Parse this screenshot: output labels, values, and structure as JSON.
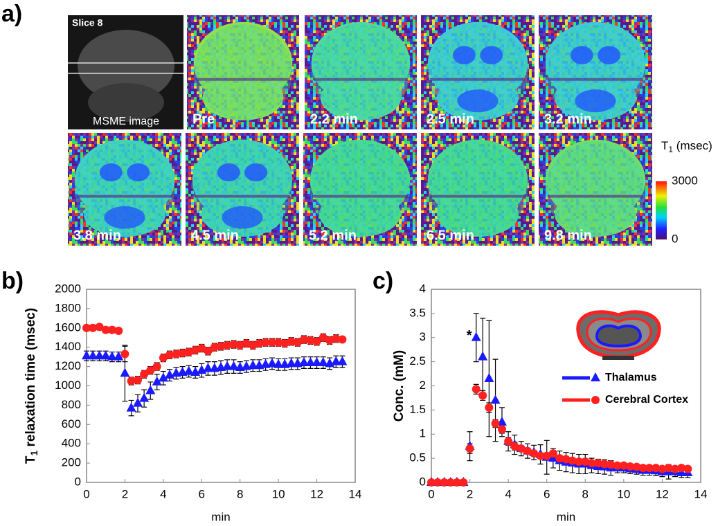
{
  "panel_labels": [
    "a)",
    "b)",
    "c)"
  ],
  "images": {
    "slice_label": "Slice 8",
    "anatomy_label": "MSME image",
    "maps": [
      "Pre",
      "2.2 min",
      "2.5 min",
      "3.2 min",
      "3.8 min",
      "4.5  min",
      "5.2  min",
      "6.5 min",
      "9.8 min"
    ],
    "colorbar": {
      "title": {
        "main": "T",
        "sub": "1",
        "rest": " (msec)"
      },
      "lim": [
        0,
        3000
      ],
      "ticks": [
        0,
        3000
      ]
    }
  },
  "chart_data": [
    {
      "type": "scatter",
      "ylabel": {
        "main": "T",
        "sub": "1",
        "rest": " relaxation time (msec)"
      },
      "xlabel": "min",
      "x": [
        0,
        0.33,
        0.67,
        1,
        1.33,
        1.67,
        2,
        2.33,
        2.67,
        3,
        3.33,
        3.67,
        4,
        4.33,
        4.67,
        5,
        5.33,
        5.67,
        6,
        6.33,
        6.67,
        7,
        7.33,
        7.67,
        8,
        8.33,
        8.67,
        9,
        9.33,
        9.67,
        10,
        10.33,
        10.67,
        11,
        11.33,
        11.67,
        12,
        12.33,
        12.67,
        13,
        13.33
      ],
      "xlim": [
        0,
        14
      ],
      "xticks": [
        0,
        2,
        4,
        6,
        8,
        10,
        12,
        14
      ],
      "ylim": [
        0,
        2000
      ],
      "yticks": [
        0,
        200,
        400,
        600,
        800,
        1000,
        1200,
        1400,
        1600,
        1800,
        2000
      ],
      "series": [
        {
          "color": "#ff2020",
          "marker": "circle",
          "values": [
            1600,
            1600,
            1610,
            1580,
            1580,
            1570,
            1330,
            1050,
            1060,
            1120,
            1160,
            1200,
            1290,
            1320,
            1330,
            1340,
            1350,
            1370,
            1390,
            1360,
            1400,
            1410,
            1420,
            1430,
            1420,
            1440,
            1420,
            1440,
            1450,
            1450,
            1450,
            1440,
            1460,
            1450,
            1480,
            1470,
            1460,
            1500,
            1470,
            1490,
            1480
          ],
          "errors": [
            30,
            30,
            30,
            30,
            30,
            30,
            80,
            40,
            40,
            40,
            40,
            40,
            40,
            40,
            40,
            40,
            40,
            40,
            40,
            40,
            40,
            40,
            40,
            40,
            40,
            40,
            40,
            40,
            40,
            40,
            40,
            40,
            40,
            40,
            40,
            40,
            40,
            40,
            40,
            40,
            30
          ]
        },
        {
          "color": "#1a1aff",
          "marker": "triangle",
          "values": [
            1310,
            1310,
            1310,
            1310,
            1300,
            1300,
            1130,
            770,
            820,
            870,
            950,
            1040,
            1080,
            1110,
            1130,
            1140,
            1150,
            1140,
            1160,
            1180,
            1180,
            1190,
            1200,
            1200,
            1190,
            1200,
            1210,
            1210,
            1220,
            1230,
            1220,
            1220,
            1230,
            1230,
            1240,
            1240,
            1240,
            1240,
            1230,
            1250,
            1250
          ],
          "errors": [
            50,
            50,
            50,
            50,
            50,
            50,
            290,
            80,
            90,
            90,
            90,
            80,
            70,
            60,
            60,
            60,
            60,
            60,
            70,
            70,
            70,
            70,
            70,
            70,
            60,
            60,
            60,
            60,
            60,
            60,
            60,
            60,
            60,
            60,
            60,
            60,
            60,
            60,
            60,
            60,
            60
          ]
        }
      ]
    },
    {
      "type": "scatter",
      "ylabel": "Conc. (mM)",
      "xlabel": "min",
      "annotation": "*",
      "x": [
        0,
        0.33,
        0.67,
        1,
        1.33,
        1.67,
        2,
        2.33,
        2.67,
        3,
        3.33,
        3.67,
        4,
        4.33,
        4.67,
        5,
        5.33,
        5.67,
        6,
        6.33,
        6.67,
        7,
        7.33,
        7.67,
        8,
        8.33,
        8.67,
        9,
        9.33,
        9.67,
        10,
        10.33,
        10.67,
        11,
        11.33,
        11.67,
        12,
        12.33,
        12.67,
        13,
        13.33
      ],
      "xlim": [
        0,
        14
      ],
      "xticks": [
        0,
        2,
        4,
        6,
        8,
        10,
        12,
        14
      ],
      "ylim": [
        0,
        4
      ],
      "yticks": [
        0,
        0.5,
        1,
        1.5,
        2,
        2.5,
        3,
        3.5,
        4
      ],
      "legend": "upper right",
      "series": [
        {
          "name": "Thalamus",
          "color": "#1a1aff",
          "marker": "triangle",
          "values": [
            0,
            0,
            0,
            0,
            0,
            0,
            0.75,
            3.0,
            2.6,
            2.15,
            1.7,
            1.25,
            0.85,
            0.78,
            0.7,
            0.65,
            0.62,
            0.58,
            0.52,
            0.5,
            0.45,
            0.42,
            0.4,
            0.38,
            0.38,
            0.35,
            0.33,
            0.32,
            0.3,
            0.3,
            0.3,
            0.28,
            0.27,
            0.25,
            0.25,
            0.24,
            0.22,
            0.22,
            0.22,
            0.2,
            0.2
          ],
          "errors": [
            0,
            0,
            0,
            0,
            0,
            0,
            0.3,
            0.5,
            0.8,
            1.2,
            0.85,
            0.3,
            0.2,
            0.2,
            0.15,
            0.15,
            0.15,
            0.2,
            0.35,
            0.2,
            0.2,
            0.2,
            0.2,
            0.2,
            0.2,
            0.15,
            0.15,
            0.15,
            0.15,
            0.1,
            0.1,
            0.1,
            0.1,
            0.1,
            0.1,
            0.1,
            0.1,
            0.15,
            0.1,
            0.1,
            0.1
          ]
        },
        {
          "name": "Cerebral Cortex",
          "color": "#ff2020",
          "marker": "circle",
          "values": [
            0,
            0,
            0,
            0,
            0,
            0,
            0.7,
            1.93,
            1.8,
            1.55,
            1.22,
            1.1,
            0.85,
            0.75,
            0.7,
            0.65,
            0.6,
            0.55,
            0.55,
            0.6,
            0.5,
            0.48,
            0.45,
            0.43,
            0.43,
            0.4,
            0.4,
            0.38,
            0.37,
            0.35,
            0.35,
            0.33,
            0.32,
            0.3,
            0.3,
            0.3,
            0.28,
            0.3,
            0.28,
            0.3,
            0.28
          ],
          "errors": [
            0,
            0,
            0,
            0,
            0,
            0,
            0.1,
            0.1,
            0.1,
            0.1,
            0.08,
            0.08,
            0.08,
            0.08,
            0.06,
            0.06,
            0.06,
            0.06,
            0.06,
            0.06,
            0.05,
            0.05,
            0.05,
            0.05,
            0.05,
            0.05,
            0.05,
            0.05,
            0.05,
            0.05,
            0.05,
            0.05,
            0.05,
            0.05,
            0.05,
            0.05,
            0.05,
            0.05,
            0.05,
            0.05,
            0.05
          ]
        }
      ]
    }
  ]
}
